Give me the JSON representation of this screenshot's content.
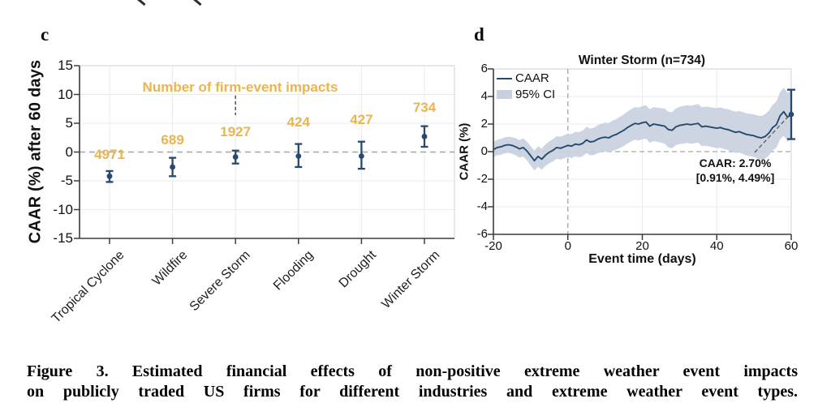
{
  "colors": {
    "navy": "#27496E",
    "band": "#C8D0DF",
    "gold": "#E9B551",
    "dash_gray": "#A6A6A6",
    "pointer_gray": "#5A5A5A",
    "grid": "#EBEBEB",
    "axis_dark": "#3C3C3C",
    "box_light": "#D9D9D9"
  },
  "chart_data": [
    {
      "id": "panel-c",
      "type": "scatter",
      "panel_letter": "c",
      "ylabel": "CAAR (%) after 60 days",
      "ylim": [
        -15,
        15
      ],
      "yticks": [
        15,
        10,
        5,
        0,
        -5,
        -10,
        -15
      ],
      "grid": true,
      "zero_line": "dashed",
      "categories": [
        "Tropical Cyclone",
        "Wildfire",
        "Severe Storm",
        "Flooding",
        "Drought",
        "Winter Storm"
      ],
      "values": [
        -4.2,
        -2.6,
        -0.85,
        -0.7,
        -0.7,
        2.7
      ],
      "ci_low": [
        -5.2,
        -4.2,
        -2.0,
        -2.6,
        -2.9,
        0.91
      ],
      "ci_high": [
        -3.3,
        -1.0,
        0.25,
        1.4,
        1.8,
        4.49
      ],
      "counts": [
        4971,
        689,
        1927,
        424,
        427,
        734
      ],
      "count_label_y": [
        -0.5,
        2.1,
        3.4,
        5.1,
        5.6,
        7.7
      ],
      "counts_annotation": {
        "text": "Number of firm-event impacts",
        "x_category": 2,
        "text_y": 11.3,
        "pointer_y": [
          9.8,
          6.4
        ]
      }
    },
    {
      "id": "panel-d",
      "type": "line",
      "panel_letter": "d",
      "title": "Winter Storm (n=734)",
      "xlabel": "Event time (days)",
      "ylabel": "CAAR (%)",
      "xlim": [
        -20,
        60
      ],
      "ylim": [
        -6,
        6
      ],
      "xticks": [
        -20,
        0,
        20,
        40,
        60
      ],
      "yticks": [
        6,
        4,
        2,
        0,
        -2,
        -4,
        -6
      ],
      "grid": true,
      "event_line_x": 0,
      "legend": [
        {
          "label": "CAAR",
          "swatch": "line"
        },
        {
          "label": "95% CI",
          "swatch": "band"
        }
      ],
      "series_x_start": -20,
      "caar": [
        0.15,
        0.3,
        0.35,
        0.45,
        0.5,
        0.45,
        0.35,
        0.2,
        0.3,
        0.05,
        -0.3,
        -0.65,
        -0.35,
        -0.55,
        -0.25,
        -0.05,
        0.1,
        0.3,
        0.25,
        0.35,
        0.45,
        0.4,
        0.55,
        0.5,
        0.6,
        0.85,
        0.7,
        0.75,
        0.9,
        1.0,
        1.05,
        1.0,
        1.15,
        1.25,
        1.4,
        1.55,
        1.75,
        1.9,
        2.05,
        2.0,
        2.1,
        2.15,
        1.85,
        2.0,
        1.95,
        1.9,
        1.85,
        1.6,
        1.55,
        1.8,
        1.9,
        1.95,
        2.0,
        1.95,
        2.0,
        2.05,
        1.8,
        1.85,
        1.8,
        1.75,
        1.7,
        1.75,
        1.65,
        1.6,
        1.5,
        1.4,
        1.45,
        1.35,
        1.25,
        1.2,
        1.15,
        1.05,
        1.0,
        1.1,
        1.35,
        1.75,
        1.95,
        2.6,
        2.9,
        2.5,
        2.7
      ],
      "ci_half_anchors": {
        "x": [
          -20,
          -15,
          -10,
          -5,
          0,
          5,
          10,
          15,
          20,
          25,
          30,
          35,
          40,
          45,
          50,
          55,
          60
        ],
        "half": [
          0.55,
          0.6,
          0.7,
          0.8,
          0.85,
          0.95,
          1.05,
          1.15,
          1.2,
          1.25,
          1.35,
          1.4,
          1.45,
          1.5,
          1.55,
          1.65,
          1.8
        ]
      },
      "endpoint": {
        "x": 60,
        "value": 2.7,
        "ci": [
          0.91,
          4.49
        ]
      },
      "annotation": {
        "line1": "CAAR: 2.70%",
        "line2": "[0.91%, 4.49%]"
      }
    }
  ],
  "caption": {
    "line1": "Figure 3. Estimated financial effects of non-positive extreme weather event impacts",
    "line2": "on publicly traded US firms for different industries and extreme weather event types."
  }
}
